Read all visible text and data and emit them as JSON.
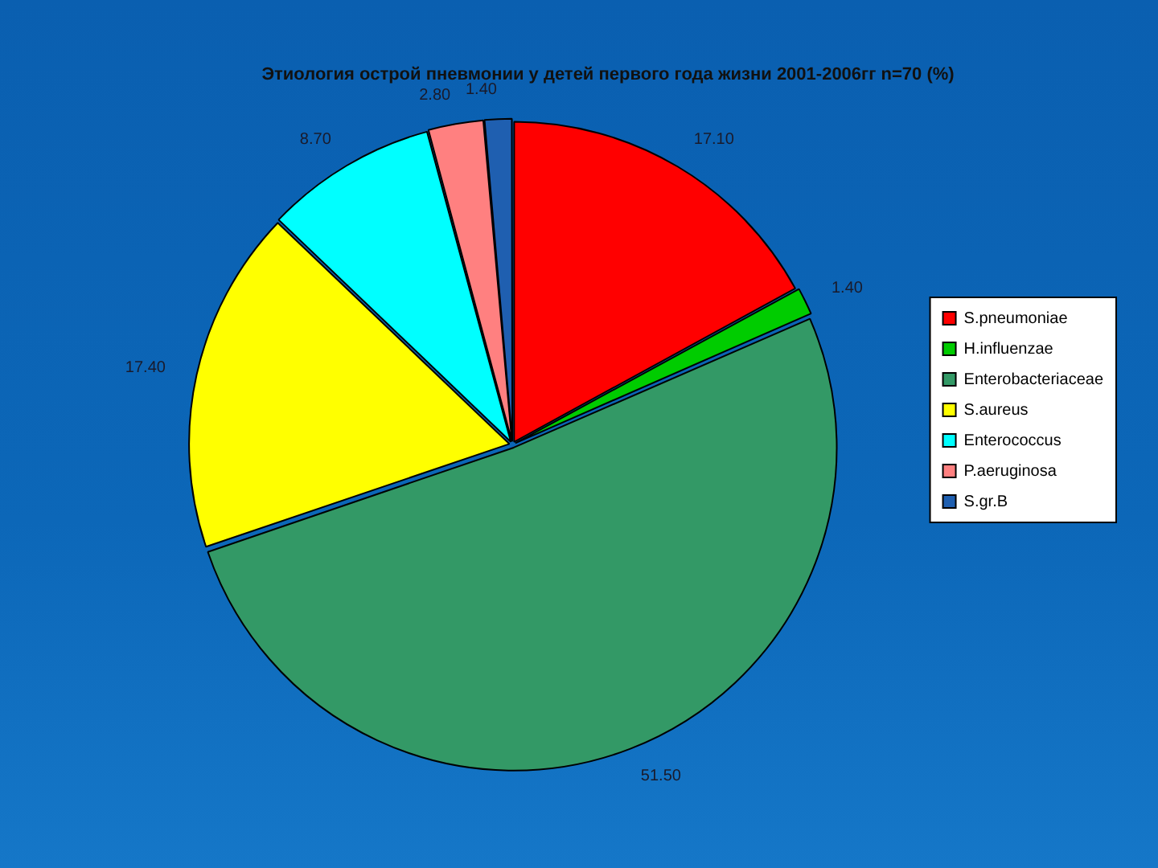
{
  "chart_data": {
    "type": "pie",
    "title": "Этиология острой пневмонии у детей первого года жизни 2001-2006гг n=70 (%)",
    "categories": [
      "S.pneumoniae",
      "H.influenzae",
      "Enterobacteriaceae",
      "S.aureus",
      "Enterococcus",
      "P.aeruginosa",
      "S.gr.B"
    ],
    "values": [
      17.1,
      1.4,
      51.5,
      17.4,
      8.7,
      2.8,
      1.4
    ],
    "value_labels": [
      "17.10",
      "1.40",
      "51.50",
      "17.40",
      "8.70",
      "2.80",
      "1.40"
    ],
    "colors": [
      "#ff0000",
      "#00cc00",
      "#339966",
      "#ffff00",
      "#00ffff",
      "#ff8080",
      "#1f5fb0"
    ],
    "legend": "right"
  }
}
